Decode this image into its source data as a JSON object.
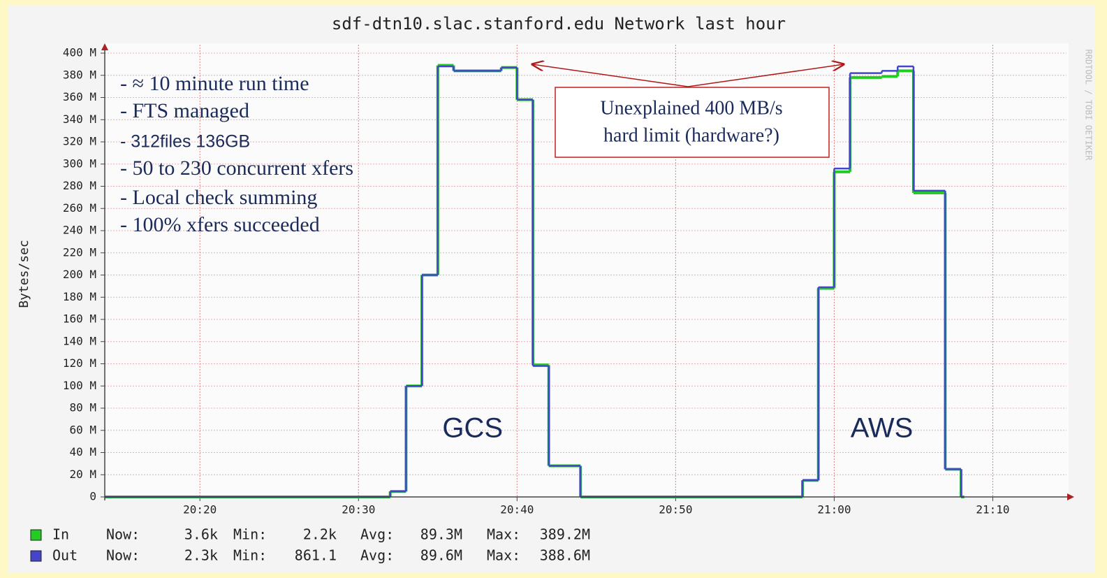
{
  "chart_data": {
    "type": "line",
    "step": "post",
    "title": "sdf-dtn10.slac.stanford.edu Network last hour",
    "y_label": "Bytes/sec",
    "watermark": "RRDTOOL / TOBI OETIKER",
    "x": [
      1214,
      1232,
      1233,
      1234,
      1235,
      1236,
      1239,
      1240,
      1241,
      1242,
      1244,
      1258,
      1259,
      1260,
      1261,
      1263,
      1264,
      1265,
      1267,
      1268,
      1268.2
    ],
    "series": [
      {
        "name": "In",
        "color": "#22cc22",
        "values": [
          0,
          5,
          100,
          200,
          389,
          384,
          387,
          358,
          119,
          28,
          0,
          15,
          188,
          293,
          378,
          379,
          384,
          274,
          25,
          0,
          0
        ],
        "stats": [
          "3.6k",
          "2.2k",
          "89.3M",
          "389.2M"
        ]
      },
      {
        "name": "Out",
        "color": "#4444cc",
        "values": [
          0,
          5,
          100,
          200,
          388,
          384,
          387,
          358,
          118,
          28,
          0,
          15,
          189,
          296,
          382,
          384,
          388,
          276,
          25,
          0,
          0
        ],
        "stats": [
          "2.3k",
          "861.1",
          "89.6M",
          "388.6M"
        ]
      }
    ],
    "stat_labels": [
      "Now:",
      "Min:",
      "Avg:",
      "Max:"
    ],
    "xlim": [
      1214,
      1275
    ],
    "xticks": [
      {
        "value": 1220,
        "label": "20:20"
      },
      {
        "value": 1230,
        "label": "20:30"
      },
      {
        "value": 1240,
        "label": "20:40"
      },
      {
        "value": 1250,
        "label": "20:50"
      },
      {
        "value": 1260,
        "label": "21:00"
      },
      {
        "value": 1270,
        "label": "21:10"
      }
    ],
    "ylim": [
      0,
      400
    ],
    "yticks": [
      0,
      {
        "value": 20,
        "label": "20 M"
      },
      {
        "value": 40,
        "label": "40 M"
      },
      {
        "value": 60,
        "label": "60 M"
      },
      {
        "value": 80,
        "label": "80 M"
      },
      {
        "value": 100,
        "label": "100 M"
      },
      {
        "value": 120,
        "label": "120 M"
      },
      {
        "value": 140,
        "label": "140 M"
      },
      {
        "value": 160,
        "label": "160 M"
      },
      {
        "value": 180,
        "label": "180 M"
      },
      {
        "value": 200,
        "label": "200 M"
      },
      {
        "value": 220,
        "label": "220 M"
      },
      {
        "value": 240,
        "label": "240 M"
      },
      {
        "value": 260,
        "label": "260 M"
      },
      {
        "value": 280,
        "label": "280 M"
      },
      {
        "value": 300,
        "label": "300 M"
      },
      {
        "value": 320,
        "label": "320 M"
      },
      {
        "value": 340,
        "label": "340 M"
      },
      {
        "value": 360,
        "label": "360 M"
      },
      {
        "value": 380,
        "label": "380 M"
      },
      {
        "value": 400,
        "label": "400 M"
      }
    ],
    "grid": true,
    "notes": [
      "- ≈ 10 minute run time",
      "- FTS managed",
      "-  312files 136GB",
      "- 50 to 230 concurrent xfers",
      "- Local check summing",
      "- 100% xfers succeeded"
    ],
    "callout": [
      "Unexplained 400 MB/s",
      "hard limit (hardware?)"
    ],
    "region_labels": [
      {
        "text": "GCS",
        "x": 1237.2
      },
      {
        "text": "AWS",
        "x": 1263.0
      }
    ]
  }
}
